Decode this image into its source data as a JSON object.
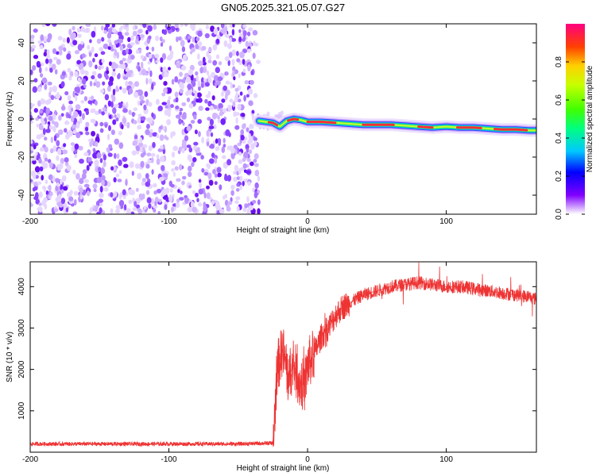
{
  "title": "GN05.2025.321.05.07.G27",
  "chart_data": [
    {
      "type": "heatmap",
      "title": "GN05.2025.321.05.07.G27",
      "xlabel": "Height of straight line (km)",
      "ylabel": "Frequency (Hz)",
      "xlim": [
        -200,
        165
      ],
      "ylim": [
        -50,
        50
      ],
      "xticks": [
        -200,
        -100,
        0,
        100
      ],
      "yticks": [
        -40,
        -20,
        0,
        20,
        40
      ],
      "noise_region_x": [
        -200,
        -35
      ],
      "ridge": {
        "x": [
          -35,
          -30,
          -25,
          -20,
          -15,
          -10,
          -5,
          0,
          10,
          20,
          30,
          40,
          50,
          60,
          70,
          80,
          90,
          100,
          110,
          120,
          130,
          140,
          150,
          160,
          165
        ],
        "freq": [
          -1.0,
          -1.5,
          -2.0,
          -4.0,
          -1.0,
          0.0,
          -0.5,
          -1.5,
          -1.5,
          -2.0,
          -2.5,
          -3.0,
          -3.0,
          -3.0,
          -3.5,
          -4.0,
          -4.5,
          -4.0,
          -4.5,
          -4.5,
          -5.0,
          -5.5,
          -5.5,
          -6.0,
          -6.0
        ]
      },
      "colorbar": {
        "label": "Normalized spectral amplitude",
        "range": [
          0,
          1
        ],
        "ticks": [
          "0.0",
          "0.2",
          "0.4",
          "0.6",
          "0.8"
        ]
      }
    },
    {
      "type": "line",
      "xlabel": "Height of straight line (km)",
      "ylabel": "SNR (10 * v/v)",
      "xlim": [
        -200,
        165
      ],
      "ylim": [
        0,
        4600
      ],
      "xticks": [
        -200,
        -100,
        0,
        100
      ],
      "yticks": [
        1000,
        2000,
        3000,
        4000
      ],
      "color": "#ee3333",
      "series": [
        {
          "name": "SNR",
          "x": [
            -200,
            -150,
            -100,
            -50,
            -25,
            -24,
            -22,
            -18,
            -14,
            -10,
            -6,
            -2,
            0,
            5,
            10,
            15,
            20,
            25,
            30,
            40,
            50,
            60,
            70,
            80,
            90,
            100,
            110,
            120,
            130,
            140,
            150,
            160,
            165
          ],
          "y": [
            200,
            200,
            200,
            200,
            220,
            700,
            2000,
            2500,
            1800,
            2100,
            1700,
            1600,
            2100,
            2400,
            2800,
            3000,
            3300,
            3500,
            3600,
            3800,
            3900,
            4000,
            4050,
            4100,
            4050,
            4000,
            4000,
            3950,
            3900,
            3850,
            3800,
            3750,
            3700
          ]
        }
      ]
    }
  ]
}
